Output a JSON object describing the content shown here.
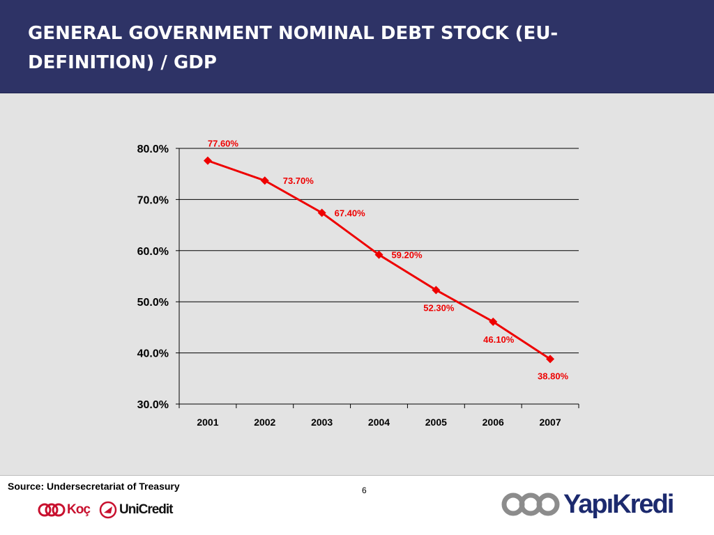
{
  "slide": {
    "title": "GENERAL GOVERNMENT NOMINAL DEBT STOCK (EU-DEFINITION) / GDP",
    "source": "Source: Undersecretariat of Treasury",
    "page_number": "6",
    "colors": {
      "header": "#2e3366",
      "series": "#ee0000",
      "panel": "#e3e3e3"
    }
  },
  "logos": {
    "koc": "Koç",
    "unicredit": "UniCredit",
    "yapikredi": "YapıKredi"
  },
  "chart_data": {
    "type": "line",
    "title": "",
    "xlabel": "",
    "ylabel": "",
    "x": [
      "2001",
      "2002",
      "2003",
      "2004",
      "2005",
      "2006",
      "2007"
    ],
    "series": [
      {
        "values": [
          77.6,
          73.7,
          67.4,
          59.2,
          52.3,
          46.1,
          38.8
        ],
        "labels": [
          "77.60%",
          "73.70%",
          "67.40%",
          "59.20%",
          "52.30%",
          "46.10%",
          "38.80%"
        ]
      }
    ],
    "ylim": [
      30,
      80
    ],
    "yticks": [
      30,
      40,
      50,
      60,
      70,
      80
    ],
    "ytick_labels": [
      "30.0%",
      "40.0%",
      "50.0%",
      "60.0%",
      "70.0%",
      "80.0%"
    ],
    "grid": true,
    "legend": "none"
  }
}
